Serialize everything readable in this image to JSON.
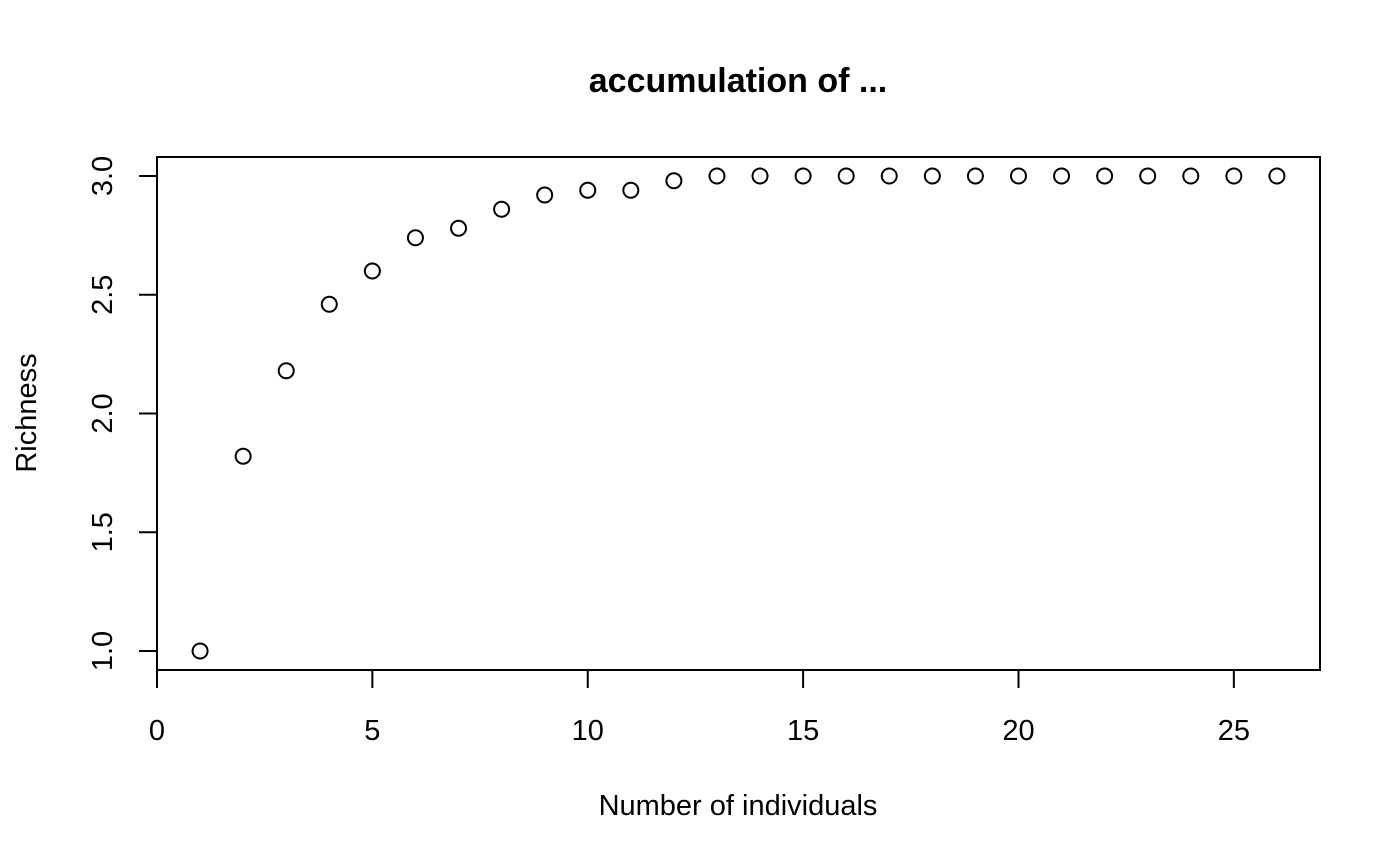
{
  "chart_data": {
    "type": "scatter",
    "title": "accumulation of ...",
    "xlabel": "Number of individuals",
    "ylabel": "Richness",
    "xlim": [
      0,
      27
    ],
    "ylim": [
      0.92,
      3.08
    ],
    "x_ticks": [
      0,
      5,
      10,
      15,
      20,
      25
    ],
    "x_tick_labels": [
      "0",
      "5",
      "10",
      "15",
      "20",
      "25"
    ],
    "y_ticks": [
      1.0,
      1.5,
      2.0,
      2.5,
      3.0
    ],
    "y_tick_labels": [
      "1.0",
      "1.5",
      "2.0",
      "2.5",
      "3.0"
    ],
    "grid": false,
    "marker": "open-circle",
    "x": [
      1,
      2,
      3,
      4,
      5,
      6,
      7,
      8,
      9,
      10,
      11,
      12,
      13,
      14,
      15,
      16,
      17,
      18,
      19,
      20,
      21,
      22,
      23,
      24,
      25,
      26
    ],
    "y": [
      1.0,
      1.82,
      2.18,
      2.46,
      2.6,
      2.74,
      2.78,
      2.86,
      2.92,
      2.94,
      2.94,
      2.98,
      3.0,
      3.0,
      3.0,
      3.0,
      3.0,
      3.0,
      3.0,
      3.0,
      3.0,
      3.0,
      3.0,
      3.0,
      3.0,
      3.0
    ]
  }
}
